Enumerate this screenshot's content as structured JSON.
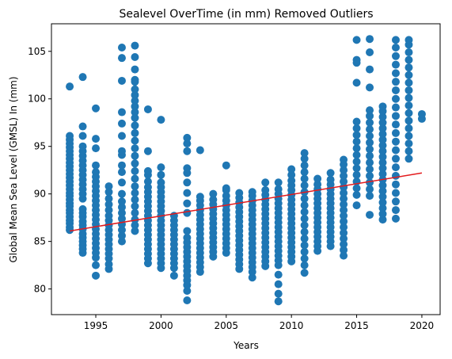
{
  "chart_data": {
    "type": "scatter",
    "title": "Sealevel OverTime (in mm) Removed Outliers",
    "xlabel": "Years",
    "ylabel": "Global Mean Sea Level (GMSL) In (mm)",
    "xlim": [
      1991.6,
      2021.4
    ],
    "ylim": [
      77.3,
      107.9
    ],
    "xticks": [
      1995,
      2000,
      2005,
      2010,
      2015,
      2020
    ],
    "yticks": [
      80,
      85,
      90,
      95,
      100,
      105
    ],
    "grid": false,
    "legend": "none",
    "colors": {
      "points": "#1f77b4",
      "trend": "#e31a1c"
    },
    "series": [
      {
        "kind": "points",
        "columns": [
          {
            "x": 1993,
            "y": [
              86.2,
              86.5,
              86.9,
              87.2,
              87.6,
              88.0,
              88.3,
              88.7,
              89.0,
              89.4,
              89.8,
              90.1,
              90.5,
              90.9,
              91.3,
              91.7,
              92.1,
              92.5,
              92.9,
              93.3,
              93.7,
              94.1,
              94.5,
              94.9,
              95.3,
              95.7,
              96.1,
              101.3
            ]
          },
          {
            "x": 1994,
            "y": [
              83.8,
              84.2,
              84.6,
              85.0,
              85.4,
              85.8,
              86.3,
              86.7,
              87.1,
              87.6,
              88.0,
              88.4,
              89.5,
              90.0,
              90.5,
              91.0,
              91.5,
              92.0,
              92.5,
              93.0,
              93.5,
              94.0,
              94.5,
              95.0,
              96.1,
              97.1,
              102.3
            ]
          },
          {
            "x": 1995,
            "y": [
              81.4,
              82.5,
              83.3,
              83.8,
              84.3,
              84.8,
              85.3,
              85.8,
              86.3,
              86.8,
              87.3,
              87.8,
              88.3,
              88.8,
              89.3,
              89.8,
              90.3,
              90.8,
              91.3,
              91.8,
              92.3,
              93.0,
              94.8,
              95.8,
              99.0
            ]
          },
          {
            "x": 1996,
            "y": [
              82.1,
              82.6,
              83.2,
              83.7,
              84.2,
              84.7,
              85.2,
              85.7,
              86.2,
              86.7,
              87.2,
              87.7,
              88.3,
              88.9,
              89.5,
              90.2,
              90.8
            ]
          },
          {
            "x": 1997,
            "y": [
              85.0,
              85.6,
              86.2,
              86.8,
              87.4,
              88.0,
              88.6,
              89.2,
              90.0,
              91.2,
              92.3,
              93.0,
              94.1,
              94.5,
              96.1,
              97.4,
              98.6,
              101.9,
              104.3,
              105.4
            ]
          },
          {
            "x": 1998,
            "y": [
              86.1,
              86.7,
              87.3,
              88.0,
              88.7,
              89.4,
              90.1,
              90.8,
              91.6,
              92.4,
              93.2,
              94.0,
              94.8,
              95.6,
              96.4,
              97.2,
              98.0,
              98.6,
              99.2,
              99.8,
              100.4,
              101.0,
              101.8,
              102.0,
              103.1,
              104.4,
              105.6
            ]
          },
          {
            "x": 1999,
            "y": [
              82.7,
              83.2,
              83.7,
              84.2,
              84.7,
              85.2,
              85.7,
              86.2,
              86.7,
              87.2,
              87.7,
              88.2,
              88.7,
              89.2,
              89.7,
              90.2,
              90.7,
              91.3,
              92.0,
              92.4,
              94.5,
              98.9
            ]
          },
          {
            "x": 2000,
            "y": [
              82.2,
              82.7,
              83.2,
              83.7,
              84.2,
              84.7,
              85.2,
              85.7,
              86.2,
              86.7,
              87.2,
              87.7,
              88.2,
              88.7,
              89.2,
              89.7,
              90.2,
              90.7,
              91.2,
              92.0,
              92.8,
              97.8
            ]
          },
          {
            "x": 2001,
            "y": [
              81.4,
              82.2,
              82.7,
              83.2,
              83.7,
              84.2,
              84.7,
              85.2,
              85.7,
              86.2,
              86.7,
              87.2,
              87.7
            ]
          },
          {
            "x": 2002,
            "y": [
              78.8,
              79.8,
              80.4,
              80.9,
              81.4,
              81.9,
              82.4,
              82.9,
              83.4,
              83.9,
              84.4,
              84.9,
              85.4,
              86.1,
              88.0,
              89.0,
              90.1,
              91.2,
              92.2,
              92.7,
              94.5,
              95.3,
              95.9
            ]
          },
          {
            "x": 2003,
            "y": [
              81.8,
              82.3,
              82.8,
              83.3,
              83.8,
              84.3,
              84.8,
              85.3,
              85.8,
              86.3,
              86.8,
              87.3,
              87.8,
              88.3,
              88.8,
              89.3,
              89.7,
              94.6
            ]
          },
          {
            "x": 2004,
            "y": [
              83.4,
              83.9,
              84.4,
              84.9,
              85.4,
              85.9,
              86.4,
              86.9,
              87.4,
              87.9,
              88.4,
              88.9,
              89.4,
              90.0
            ]
          },
          {
            "x": 2005,
            "y": [
              83.8,
              84.3,
              84.8,
              85.3,
              85.8,
              86.3,
              86.8,
              87.3,
              87.8,
              88.3,
              88.8,
              89.3,
              89.8,
              90.4,
              90.6,
              93.0
            ]
          },
          {
            "x": 2006,
            "y": [
              82.1,
              82.6,
              83.1,
              83.6,
              84.1,
              84.6,
              85.1,
              85.6,
              86.1,
              86.6,
              87.1,
              87.6,
              88.1,
              88.6,
              89.1,
              89.6,
              90.1
            ]
          },
          {
            "x": 2007,
            "y": [
              81.2,
              81.8,
              82.3,
              82.8,
              83.3,
              83.8,
              84.3,
              84.8,
              85.3,
              85.8,
              86.3,
              86.8,
              87.3,
              87.8,
              88.3,
              88.8,
              89.3,
              89.8,
              90.2
            ]
          },
          {
            "x": 2008,
            "y": [
              82.4,
              82.9,
              83.4,
              83.9,
              84.4,
              84.9,
              85.4,
              85.9,
              86.4,
              86.9,
              87.4,
              87.9,
              88.4,
              88.9,
              89.4,
              89.9,
              90.4,
              91.2
            ]
          },
          {
            "x": 2009,
            "y": [
              78.7,
              79.5,
              80.5,
              81.5,
              82.5,
              83.0,
              83.5,
              84.0,
              84.5,
              85.0,
              85.5,
              86.0,
              86.5,
              87.0,
              87.5,
              88.0,
              88.5,
              89.0,
              89.5,
              90.0,
              90.5,
              91.2
            ]
          },
          {
            "x": 2010,
            "y": [
              82.9,
              83.4,
              83.9,
              84.4,
              84.9,
              85.4,
              85.9,
              86.4,
              86.9,
              87.4,
              87.9,
              88.4,
              88.9,
              89.4,
              89.9,
              90.4,
              90.9,
              91.4,
              92.0,
              92.6
            ]
          },
          {
            "x": 2011,
            "y": [
              81.7,
              82.5,
              83.2,
              83.9,
              84.6,
              85.3,
              86.0,
              86.7,
              87.4,
              88.1,
              88.8,
              89.5,
              90.2,
              90.9,
              91.6,
              92.3,
              93.0,
              93.7,
              94.3
            ]
          },
          {
            "x": 2012,
            "y": [
              84.0,
              84.5,
              85.0,
              85.5,
              86.0,
              86.5,
              87.0,
              87.5,
              88.0,
              88.5,
              89.0,
              89.5,
              90.0,
              90.5,
              91.0,
              91.6
            ]
          },
          {
            "x": 2013,
            "y": [
              84.5,
              85.0,
              85.5,
              86.0,
              86.5,
              87.0,
              87.5,
              88.0,
              88.5,
              89.0,
              89.5,
              90.0,
              90.5,
              91.0,
              91.5,
              92.2
            ]
          },
          {
            "x": 2014,
            "y": [
              83.5,
              84.1,
              84.7,
              85.3,
              85.9,
              86.5,
              87.1,
              87.7,
              88.3,
              88.9,
              89.5,
              90.1,
              90.7,
              91.3,
              91.9,
              92.5,
              93.1,
              93.6
            ]
          },
          {
            "x": 2015,
            "y": [
              88.8,
              89.9,
              90.6,
              91.3,
              92.0,
              92.7,
              93.4,
              94.1,
              94.8,
              95.5,
              96.2,
              96.9,
              97.6,
              101.7,
              103.8,
              104.1,
              106.2
            ]
          },
          {
            "x": 2016,
            "y": [
              87.8,
              89.8,
              90.5,
              91.2,
              91.9,
              92.6,
              93.3,
              94.0,
              94.7,
              95.4,
              96.1,
              96.8,
              97.5,
              98.2,
              98.8,
              101.2,
              103.1,
              104.9,
              106.3
            ]
          },
          {
            "x": 2017,
            "y": [
              87.3,
              87.9,
              88.5,
              89.1,
              89.7,
              90.3,
              90.9,
              91.5,
              92.1,
              92.7,
              93.3,
              93.9,
              94.5,
              95.1,
              95.7,
              96.3,
              96.9,
              97.5,
              98.1,
              98.7,
              99.2
            ]
          },
          {
            "x": 2018,
            "y": [
              87.4,
              88.3,
              89.2,
              90.1,
              91.0,
              91.9,
              92.8,
              93.7,
              94.6,
              95.5,
              96.4,
              97.3,
              98.2,
              99.1,
              100.0,
              100.9,
              101.8,
              102.7,
              103.6,
              104.5,
              105.4,
              106.2
            ]
          },
          {
            "x": 2019,
            "y": [
              93.7,
              94.5,
              95.3,
              96.1,
              96.9,
              97.7,
              98.5,
              99.3,
              100.1,
              100.9,
              101.7,
              102.5,
              103.3,
              104.1,
              104.9,
              105.7,
              106.2
            ]
          },
          {
            "x": 2020,
            "y": [
              97.9,
              98.4
            ]
          }
        ]
      },
      {
        "kind": "trend",
        "x": [
          1993,
          2020
        ],
        "y": [
          86.1,
          92.2
        ]
      }
    ]
  }
}
